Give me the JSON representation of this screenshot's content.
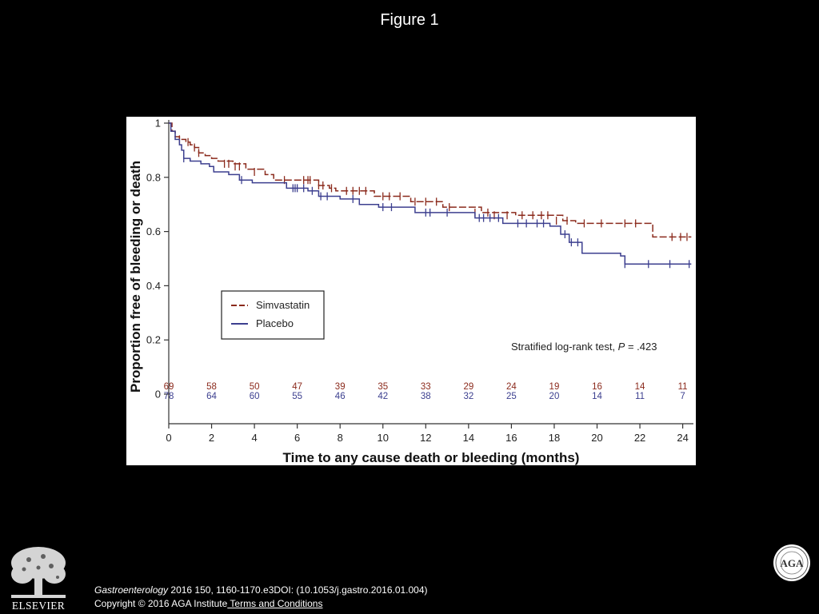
{
  "slide": {
    "title": "Figure 1"
  },
  "footer": {
    "journal": "Gastroenterology",
    "citation_rest": " 2016 150, 1160-1170.e3DOI: (10.1053/j.gastro.2016.01.004)",
    "copyright": "Copyright © 2016 AGA Institute",
    "terms_link": " Terms and Conditions"
  },
  "logos": {
    "publisher": "ELSEVIER",
    "seal_text": "AGA"
  },
  "colors": {
    "simvastatin": "#8b2a1c",
    "placebo": "#3c3f8f",
    "background": "#000000",
    "panel": "#ffffff"
  },
  "chart_data": {
    "type": "line",
    "subtype": "kaplan-meier",
    "xlabel": "Time to any cause death or bleeding (months)",
    "ylabel": "Proportion free of bleeding or death",
    "xlim": [
      0,
      24.5
    ],
    "ylim": [
      0,
      1
    ],
    "xticks": [
      0,
      2,
      4,
      6,
      8,
      10,
      12,
      14,
      16,
      18,
      20,
      22,
      24
    ],
    "yticks": [
      0,
      0.2,
      0.4,
      0.6,
      0.8,
      1
    ],
    "ytick_labels": [
      "0",
      "0.2",
      "0.4",
      "0.6",
      "0.8",
      "1"
    ],
    "grid": false,
    "legend_position": "center-left",
    "annotation": {
      "prefix": "Stratified log-rank test, ",
      "p_symbol": "P",
      "suffix": " = .423"
    },
    "series": [
      {
        "name": "Simvastatin",
        "color": "#8b2a1c",
        "dash": true,
        "steps": [
          [
            0,
            1.0
          ],
          [
            0.15,
            0.97
          ],
          [
            0.3,
            0.95
          ],
          [
            0.5,
            0.94
          ],
          [
            0.8,
            0.93
          ],
          [
            1.0,
            0.92
          ],
          [
            1.2,
            0.91
          ],
          [
            1.4,
            0.89
          ],
          [
            1.7,
            0.88
          ],
          [
            2.0,
            0.87
          ],
          [
            2.3,
            0.86
          ],
          [
            3.0,
            0.85
          ],
          [
            3.6,
            0.83
          ],
          [
            4.5,
            0.81
          ],
          [
            4.9,
            0.79
          ],
          [
            6.4,
            0.79
          ],
          [
            7.0,
            0.77
          ],
          [
            7.5,
            0.76
          ],
          [
            7.8,
            0.75
          ],
          [
            9.0,
            0.75
          ],
          [
            9.6,
            0.73
          ],
          [
            11.0,
            0.73
          ],
          [
            11.3,
            0.71
          ],
          [
            12.6,
            0.71
          ],
          [
            12.8,
            0.69
          ],
          [
            14.6,
            0.67
          ],
          [
            16.2,
            0.66
          ],
          [
            18.4,
            0.64
          ],
          [
            19.0,
            0.63
          ],
          [
            22.5,
            0.63
          ],
          [
            22.6,
            0.58
          ],
          [
            24.4,
            0.58
          ]
        ],
        "censors": [
          [
            0.5,
            0.94
          ],
          [
            0.9,
            0.93
          ],
          [
            1.2,
            0.91
          ],
          [
            1.4,
            0.89
          ],
          [
            2.6,
            0.85
          ],
          [
            2.8,
            0.85
          ],
          [
            3.1,
            0.84
          ],
          [
            3.3,
            0.84
          ],
          [
            4.0,
            0.82
          ],
          [
            5.4,
            0.79
          ],
          [
            6.3,
            0.79
          ],
          [
            6.5,
            0.79
          ],
          [
            6.6,
            0.79
          ],
          [
            7.0,
            0.77
          ],
          [
            7.2,
            0.77
          ],
          [
            7.6,
            0.76
          ],
          [
            8.3,
            0.75
          ],
          [
            8.6,
            0.75
          ],
          [
            8.9,
            0.75
          ],
          [
            9.2,
            0.75
          ],
          [
            10.0,
            0.73
          ],
          [
            10.3,
            0.73
          ],
          [
            10.8,
            0.73
          ],
          [
            11.5,
            0.71
          ],
          [
            12.0,
            0.71
          ],
          [
            12.5,
            0.71
          ],
          [
            13.1,
            0.69
          ],
          [
            14.3,
            0.67
          ],
          [
            14.9,
            0.67
          ],
          [
            15.2,
            0.66
          ],
          [
            15.8,
            0.66
          ],
          [
            16.5,
            0.66
          ],
          [
            17.0,
            0.66
          ],
          [
            17.4,
            0.66
          ],
          [
            17.7,
            0.66
          ],
          [
            18.1,
            0.64
          ],
          [
            18.6,
            0.64
          ],
          [
            19.4,
            0.63
          ],
          [
            20.2,
            0.63
          ],
          [
            21.3,
            0.63
          ],
          [
            21.8,
            0.63
          ],
          [
            23.5,
            0.58
          ],
          [
            23.9,
            0.58
          ],
          [
            24.2,
            0.58
          ]
        ]
      },
      {
        "name": "Placebo",
        "color": "#3c3f8f",
        "dash": false,
        "steps": [
          [
            0,
            1.0
          ],
          [
            0.1,
            0.97
          ],
          [
            0.3,
            0.94
          ],
          [
            0.5,
            0.92
          ],
          [
            0.6,
            0.9
          ],
          [
            0.7,
            0.87
          ],
          [
            1.0,
            0.86
          ],
          [
            1.5,
            0.85
          ],
          [
            1.9,
            0.84
          ],
          [
            2.1,
            0.82
          ],
          [
            2.8,
            0.81
          ],
          [
            3.3,
            0.79
          ],
          [
            3.9,
            0.78
          ],
          [
            5.0,
            0.78
          ],
          [
            5.5,
            0.76
          ],
          [
            6.2,
            0.76
          ],
          [
            6.5,
            0.75
          ],
          [
            7.0,
            0.73
          ],
          [
            8.0,
            0.72
          ],
          [
            8.9,
            0.7
          ],
          [
            9.8,
            0.69
          ],
          [
            11.5,
            0.67
          ],
          [
            12.8,
            0.67
          ],
          [
            14.3,
            0.65
          ],
          [
            15.6,
            0.63
          ],
          [
            17.8,
            0.62
          ],
          [
            18.3,
            0.59
          ],
          [
            18.7,
            0.56
          ],
          [
            19.3,
            0.52
          ],
          [
            21.1,
            0.51
          ],
          [
            21.3,
            0.48
          ],
          [
            24.4,
            0.48
          ]
        ],
        "censors": [
          [
            0.7,
            0.87
          ],
          [
            3.4,
            0.79
          ],
          [
            5.8,
            0.76
          ],
          [
            5.9,
            0.76
          ],
          [
            6.0,
            0.76
          ],
          [
            6.3,
            0.76
          ],
          [
            6.7,
            0.75
          ],
          [
            7.1,
            0.73
          ],
          [
            7.4,
            0.73
          ],
          [
            8.6,
            0.72
          ],
          [
            10.0,
            0.69
          ],
          [
            10.4,
            0.69
          ],
          [
            12.0,
            0.67
          ],
          [
            12.2,
            0.67
          ],
          [
            13.0,
            0.67
          ],
          [
            14.5,
            0.65
          ],
          [
            14.7,
            0.65
          ],
          [
            15.0,
            0.65
          ],
          [
            15.4,
            0.65
          ],
          [
            16.3,
            0.63
          ],
          [
            16.7,
            0.63
          ],
          [
            17.2,
            0.63
          ],
          [
            17.5,
            0.63
          ],
          [
            18.5,
            0.59
          ],
          [
            18.8,
            0.56
          ],
          [
            19.1,
            0.56
          ],
          [
            21.3,
            0.48
          ],
          [
            22.4,
            0.48
          ],
          [
            23.4,
            0.48
          ],
          [
            24.3,
            0.48
          ]
        ]
      }
    ],
    "at_risk": {
      "times": [
        0,
        2,
        4,
        6,
        8,
        10,
        12,
        14,
        16,
        18,
        20,
        22,
        24
      ],
      "simvastatin": [
        "69",
        "58",
        "50",
        "47",
        "39",
        "35",
        "33",
        "29",
        "24",
        "19",
        "16",
        "14",
        "11"
      ],
      "placebo": [
        "78",
        "64",
        "60",
        "55",
        "46",
        "42",
        "38",
        "32",
        "25",
        "20",
        "14",
        "11",
        "7"
      ]
    }
  }
}
